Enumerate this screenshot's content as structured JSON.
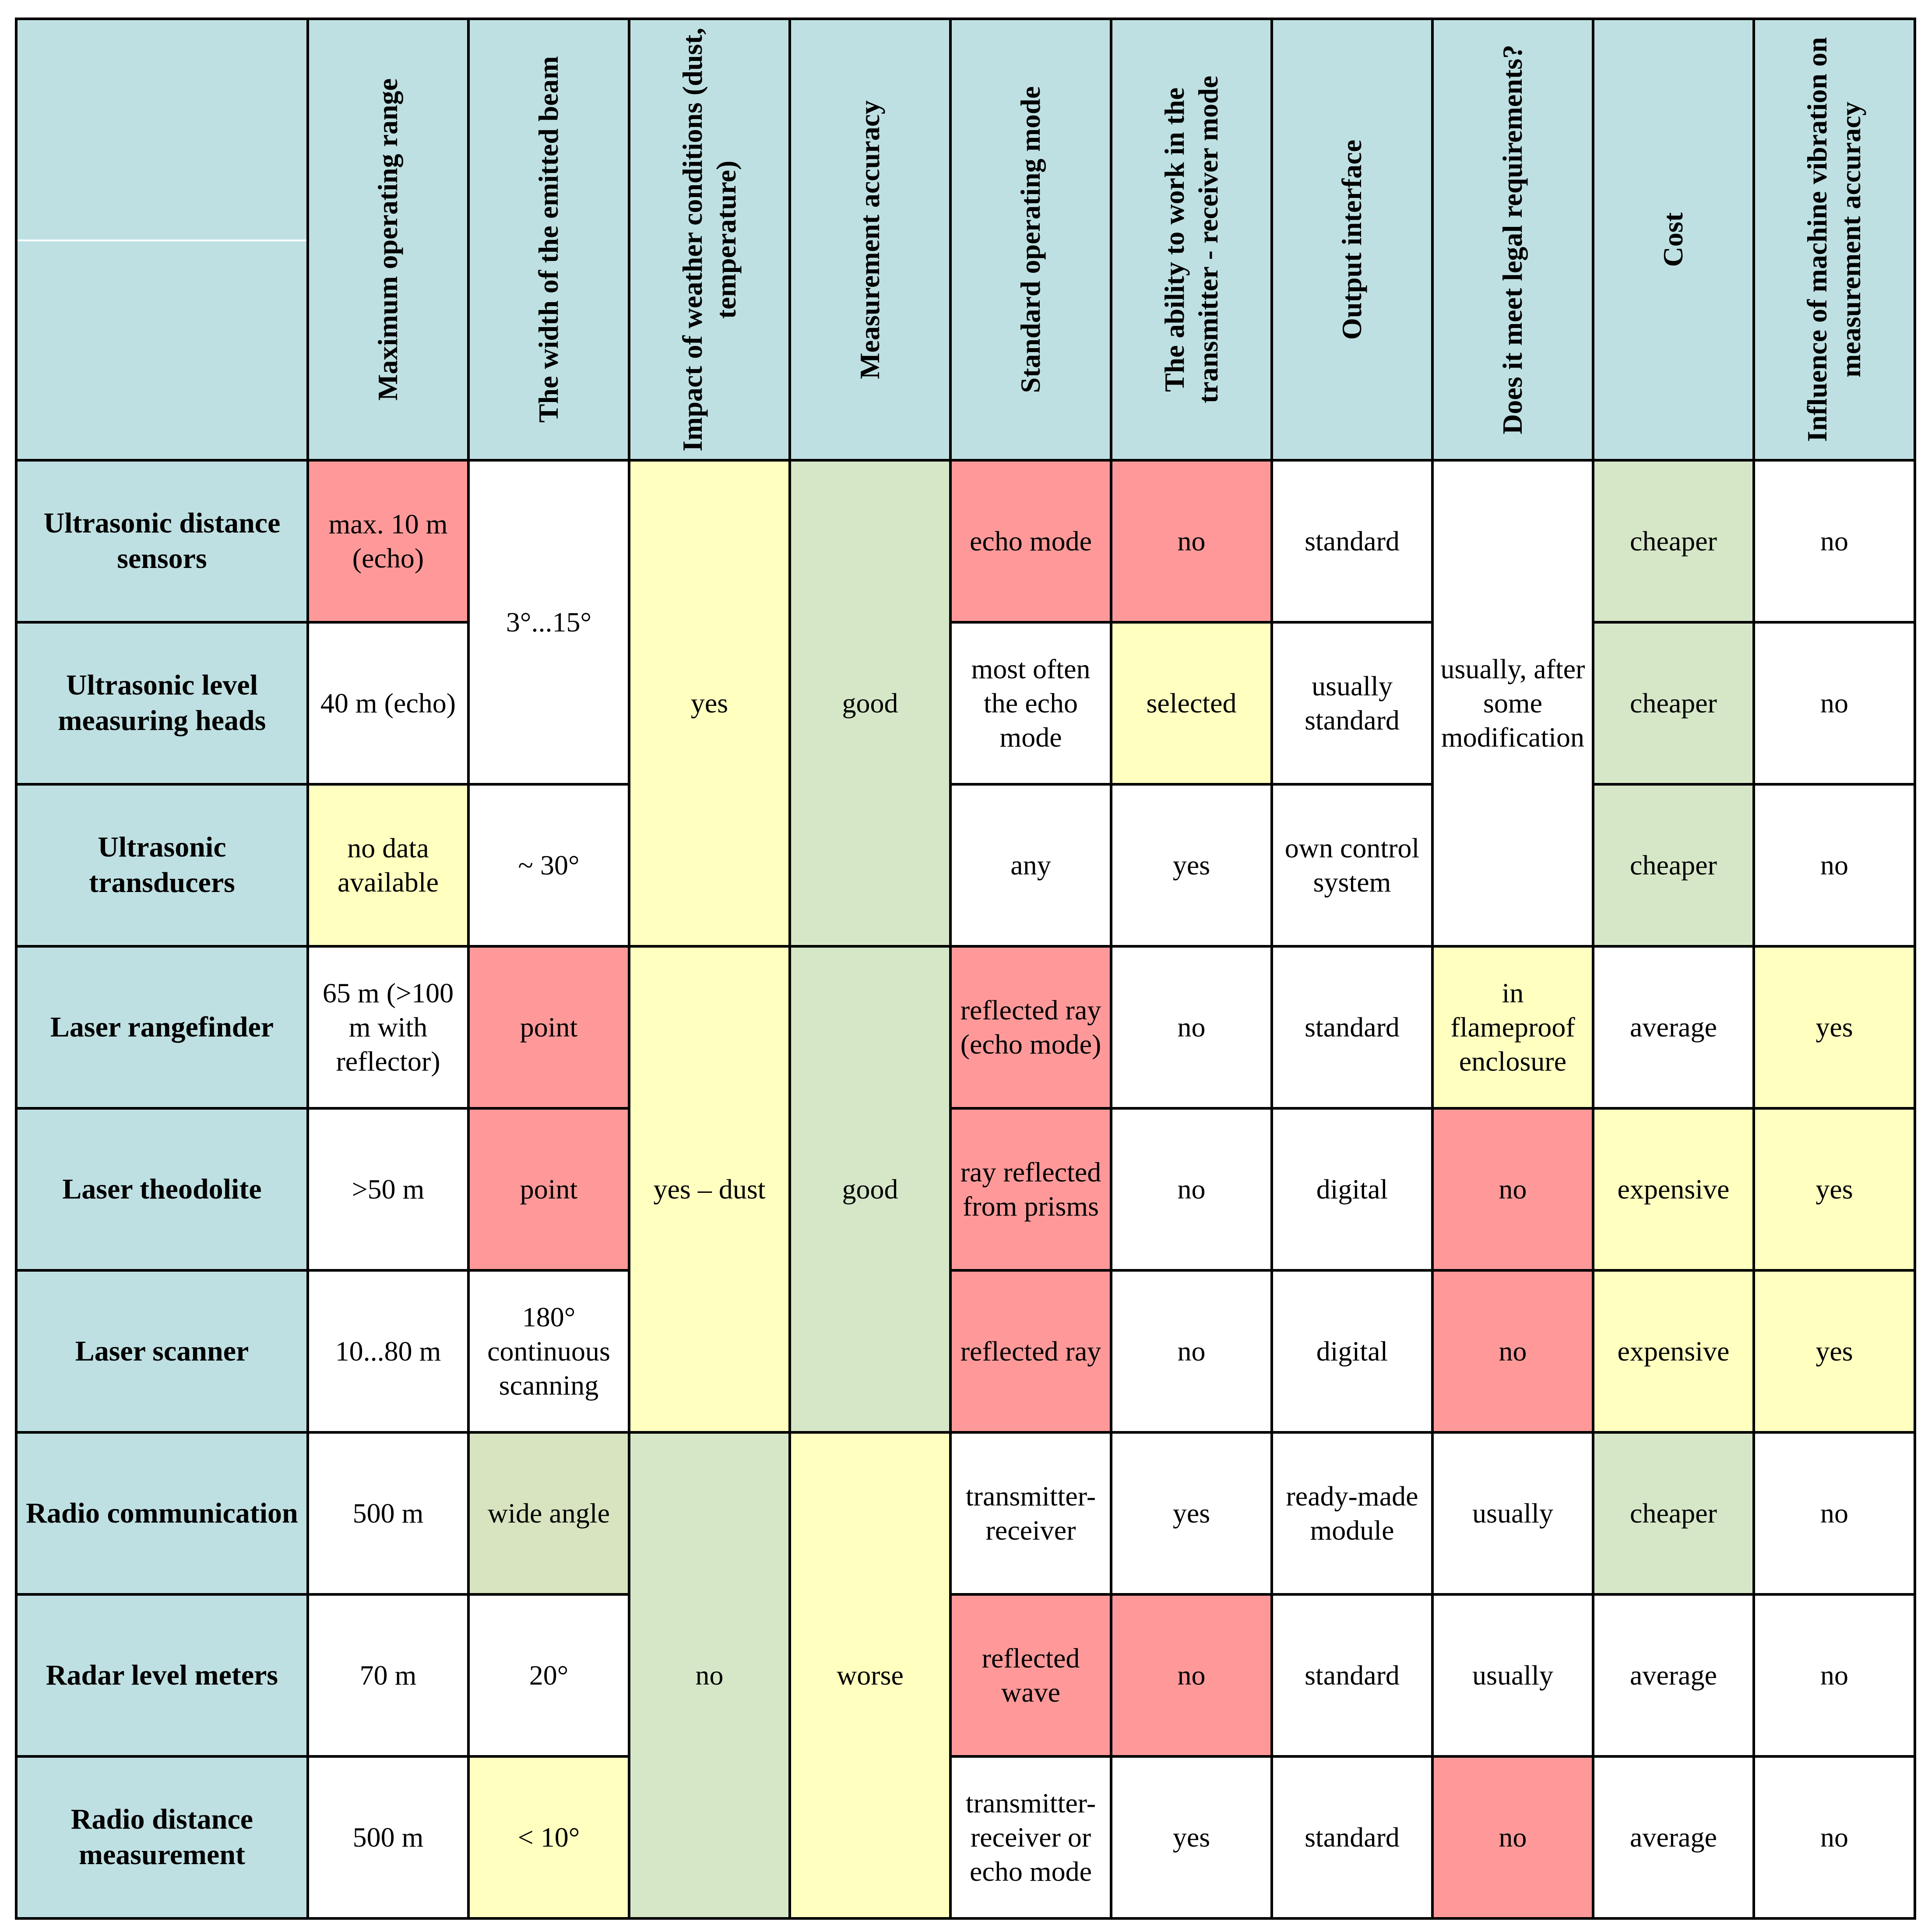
{
  "colors": {
    "header": "#bfe0e2",
    "red": "#ff9999",
    "yellow": "#ffffc0",
    "green": "#d6e7c8",
    "olive": "#d7e4bf"
  },
  "headers": [
    "Maximum operating range",
    "The width of the emitted beam",
    "Impact of weather conditions (dust, temperature)",
    "Measurement accuracy",
    "Standard operating mode",
    "The ability to work in the transmitter - receiver mode",
    "Output interface",
    "Does it meet legal requirements?",
    "Cost",
    "Influence of machine vibration on measurement accuracy"
  ],
  "rows": [
    {
      "name": "Ultrasonic distance sensors",
      "range": "max. 10 m (echo)",
      "mode": "echo mode",
      "txrx": "no",
      "interface": "standard",
      "cost": "cheaper",
      "vibration": "no"
    },
    {
      "name": "Ultrasonic level measuring heads",
      "range": "40 m (echo)",
      "mode": "most often the echo mode",
      "txrx": "selected",
      "interface": "usually standard",
      "cost": "cheaper",
      "vibration": "no"
    },
    {
      "name": "Ultrasonic transducers",
      "range": "no data available",
      "beam": "~ 30°",
      "mode": "any",
      "txrx": "yes",
      "interface": "own control system",
      "cost": "cheaper",
      "vibration": "no"
    },
    {
      "name": "Laser rangefinder",
      "range": "65 m (>100 m with reflector)",
      "beam": "point",
      "mode": "reflected ray (echo mode)",
      "txrx": "no",
      "interface": "standard",
      "legal": "in flameproof enclosure",
      "cost": "average",
      "vibration": "yes"
    },
    {
      "name": "Laser theodolite",
      "range": ">50 m",
      "beam": "point",
      "mode": "ray reflected from prisms",
      "txrx": "no",
      "interface": "digital",
      "legal": "no",
      "cost": "expensive",
      "vibration": "yes"
    },
    {
      "name": "Laser scanner",
      "range": "10...80 m",
      "beam": "180° continuous scanning",
      "mode": "reflected ray",
      "txrx": "no",
      "interface": "digital",
      "legal": "no",
      "cost": "expensive",
      "vibration": "yes"
    },
    {
      "name": "Radio communication",
      "range": "500 m",
      "beam": "wide angle",
      "mode": "transmitter-receiver",
      "txrx": "yes",
      "interface": "ready-made module",
      "legal": "usually",
      "cost": "cheaper",
      "vibration": "no"
    },
    {
      "name": "Radar level meters",
      "range": "70 m",
      "beam": "20°",
      "mode": "reflected wave",
      "txrx": "no",
      "interface": "standard",
      "legal": "usually",
      "cost": "average",
      "vibration": "no"
    },
    {
      "name": "Radio distance measurement",
      "range": "500 m",
      "beam": "< 10°",
      "mode": "transmitter-receiver or echo mode",
      "txrx": "yes",
      "interface": "standard",
      "legal": "no",
      "cost": "average",
      "vibration": "no"
    }
  ],
  "merged": {
    "ultrasonic_beam": "3°...15°",
    "ultrasonic_legal": "usually, after some modification",
    "ultrasonic_weather": "yes",
    "ultrasonic_accuracy": "good",
    "laser_weather": "yes – dust",
    "laser_accuracy": "good",
    "radio_weather": "no",
    "radio_accuracy": "worse"
  }
}
